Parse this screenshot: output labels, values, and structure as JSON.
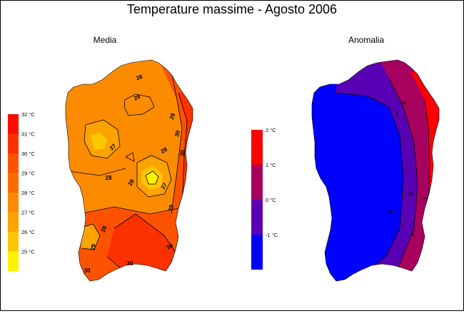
{
  "title": "Temperature massime - Agosto 2006",
  "panels": {
    "media": {
      "title": "Media",
      "legend": {
        "colors": [
          "#fb0d00",
          "#fd3000",
          "#fd5300",
          "#fd6b00",
          "#fd8b00",
          "#fda300",
          "#fdc600",
          "#fdf200"
        ],
        "labels": [
          "32 °C",
          "31 °C",
          "30 °C",
          "29 °C",
          "28 °C",
          "27 °C",
          "26 °C",
          "25 °C"
        ]
      },
      "contour_labels": [
        "28",
        "29",
        "29",
        "30",
        "28",
        "27",
        "28",
        "27",
        "28",
        "29",
        "28",
        "29",
        "30",
        "30",
        "30",
        "30"
      ]
    },
    "anomalia": {
      "title": "Anomalia",
      "legend": {
        "colors": [
          "#ff0000",
          "#a8005e",
          "#5a00b4",
          "#0000ff"
        ],
        "labels": [
          "2 °C",
          "1 °C",
          "0 °C",
          "-1 °C"
        ]
      },
      "contour_labels": [
        "0",
        "1",
        "0",
        "1",
        "0",
        "-1"
      ]
    }
  },
  "colors": {
    "media_base": "#fd8b00",
    "media_hot": "#fd5300",
    "media_hotter": "#fd3000",
    "media_cool": "#fda300",
    "media_coolest": "#fdc600",
    "media_peak_cool": "#fdf200",
    "anom_neg": "#0000ff",
    "anom_zero": "#5a00b4",
    "anom_pos": "#a8005e",
    "anom_high": "#ff0000"
  }
}
